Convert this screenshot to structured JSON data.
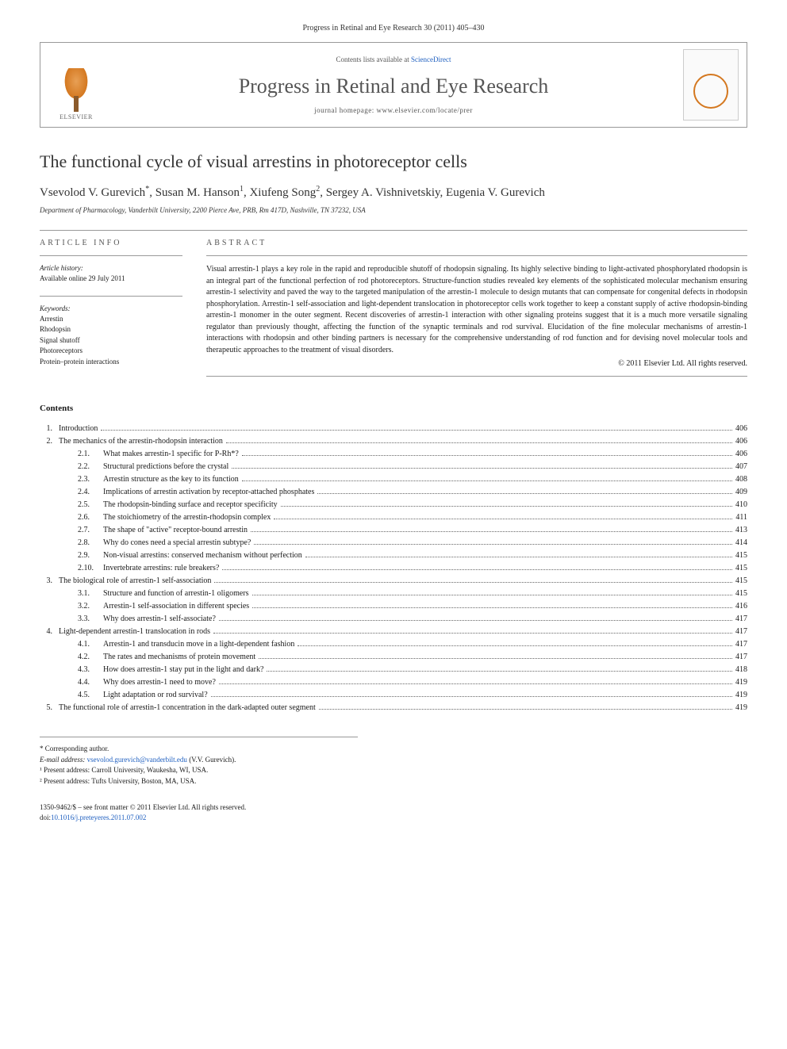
{
  "citation": "Progress in Retinal and Eye Research 30 (2011) 405–430",
  "header": {
    "contents_prefix": "Contents lists available at ",
    "contents_link": "ScienceDirect",
    "journal": "Progress in Retinal and Eye Research",
    "homepage_prefix": "journal homepage: ",
    "homepage": "www.elsevier.com/locate/prer",
    "publisher": "ELSEVIER"
  },
  "title": "The functional cycle of visual arrestins in photoreceptor cells",
  "authors_html": "Vsevolod V. Gurevich*, Susan M. Hanson¹, Xiufeng Song², Sergey A. Vishnivetskiy, Eugenia V. Gurevich",
  "authors": {
    "a1": "Vsevolod V. Gurevich",
    "a1s": "*",
    "a2": "Susan M. Hanson",
    "a2s": "1",
    "a3": "Xiufeng Song",
    "a3s": "2",
    "a4": "Sergey A. Vishnivetskiy",
    "a5": "Eugenia V. Gurevich"
  },
  "affiliation": "Department of Pharmacology, Vanderbilt University, 2200 Pierce Ave, PRB, Rm 417D, Nashville, TN 37232, USA",
  "info": {
    "heading_info": "ARTICLE INFO",
    "heading_abstract": "ABSTRACT",
    "history_label": "Article history:",
    "history": "Available online 29 July 2011",
    "keywords_label": "Keywords:",
    "keywords": [
      "Arrestin",
      "Rhodopsin",
      "Signal shutoff",
      "Photoreceptors",
      "Protein–protein interactions"
    ]
  },
  "abstract": "Visual arrestin-1 plays a key role in the rapid and reproducible shutoff of rhodopsin signaling. Its highly selective binding to light-activated phosphorylated rhodopsin is an integral part of the functional perfection of rod photoreceptors. Structure-function studies revealed key elements of the sophisticated molecular mechanism ensuring arrestin-1 selectivity and paved the way to the targeted manipulation of the arrestin-1 molecule to design mutants that can compensate for congenital defects in rhodopsin phosphorylation. Arrestin-1 self-association and light-dependent translocation in photoreceptor cells work together to keep a constant supply of active rhodopsin-binding arrestin-1 monomer in the outer segment. Recent discoveries of arrestin-1 interaction with other signaling proteins suggest that it is a much more versatile signaling regulator than previously thought, affecting the function of the synaptic terminals and rod survival. Elucidation of the fine molecular mechanisms of arrestin-1 interactions with rhodopsin and other binding partners is necessary for the comprehensive understanding of rod function and for devising novel molecular tools and therapeutic approaches to the treatment of visual disorders.",
  "copyright": "© 2011 Elsevier Ltd. All rights reserved.",
  "contents_label": "Contents",
  "toc": [
    {
      "n": "1.",
      "t": "Introduction",
      "p": "406",
      "l": 1
    },
    {
      "n": "2.",
      "t": "The mechanics of the arrestin-rhodopsin interaction",
      "p": "406",
      "l": 1
    },
    {
      "n": "2.1.",
      "t": "What makes arrestin-1 specific for P-Rh*?",
      "p": "406",
      "l": 2
    },
    {
      "n": "2.2.",
      "t": "Structural predictions before the crystal",
      "p": "407",
      "l": 2
    },
    {
      "n": "2.3.",
      "t": "Arrestin structure as the key to its function",
      "p": "408",
      "l": 2
    },
    {
      "n": "2.4.",
      "t": "Implications of arrestin activation by receptor-attached phosphates",
      "p": "409",
      "l": 2
    },
    {
      "n": "2.5.",
      "t": "The rhodopsin-binding surface and receptor specificity",
      "p": "410",
      "l": 2
    },
    {
      "n": "2.6.",
      "t": "The stoichiometry of the arrestin-rhodopsin complex",
      "p": "411",
      "l": 2
    },
    {
      "n": "2.7.",
      "t": "The shape of \"active\" receptor-bound arrestin",
      "p": "413",
      "l": 2
    },
    {
      "n": "2.8.",
      "t": "Why do cones need a special arrestin subtype?",
      "p": "414",
      "l": 2
    },
    {
      "n": "2.9.",
      "t": "Non-visual arrestins: conserved mechanism without perfection",
      "p": "415",
      "l": 2
    },
    {
      "n": "2.10.",
      "t": "Invertebrate arrestins: rule breakers?",
      "p": "415",
      "l": 2
    },
    {
      "n": "3.",
      "t": "The biological role of arrestin-1 self-association",
      "p": "415",
      "l": 1
    },
    {
      "n": "3.1.",
      "t": "Structure and function of arrestin-1 oligomers",
      "p": "415",
      "l": 2
    },
    {
      "n": "3.2.",
      "t": "Arrestin-1 self-association in different species",
      "p": "416",
      "l": 2
    },
    {
      "n": "3.3.",
      "t": "Why does arrestin-1 self-associate?",
      "p": "417",
      "l": 2
    },
    {
      "n": "4.",
      "t": "Light-dependent arrestin-1 translocation in rods",
      "p": "417",
      "l": 1
    },
    {
      "n": "4.1.",
      "t": "Arrestin-1 and transducin move in a light-dependent fashion",
      "p": "417",
      "l": 2
    },
    {
      "n": "4.2.",
      "t": "The rates and mechanisms of protein movement",
      "p": "417",
      "l": 2
    },
    {
      "n": "4.3.",
      "t": "How does arrestin-1 stay put in the light and dark?",
      "p": "418",
      "l": 2
    },
    {
      "n": "4.4.",
      "t": "Why does arrestin-1 need to move?",
      "p": "419",
      "l": 2
    },
    {
      "n": "4.5.",
      "t": "Light adaptation or rod survival?",
      "p": "419",
      "l": 2
    },
    {
      "n": "5.",
      "t": "The functional role of arrestin-1 concentration in the dark-adapted outer segment",
      "p": "419",
      "l": 1
    }
  ],
  "footnotes": {
    "corr": "* Corresponding author.",
    "email_label": "E-mail address: ",
    "email": "vsevolod.gurevich@vanderbilt.edu",
    "email_who": " (V.V. Gurevich).",
    "fn1": "¹ Present address: Carroll University, Waukesha, WI, USA.",
    "fn2": "² Present address: Tufts University, Boston, MA, USA."
  },
  "bottom": {
    "issn": "1350-9462/$ – see front matter © 2011 Elsevier Ltd. All rights reserved.",
    "doi_label": "doi:",
    "doi": "10.1016/j.preteyeres.2011.07.002"
  },
  "colors": {
    "link": "#2060c0",
    "text": "#1a1a1a",
    "border": "#999999",
    "elsevier_orange": "#d47820"
  }
}
